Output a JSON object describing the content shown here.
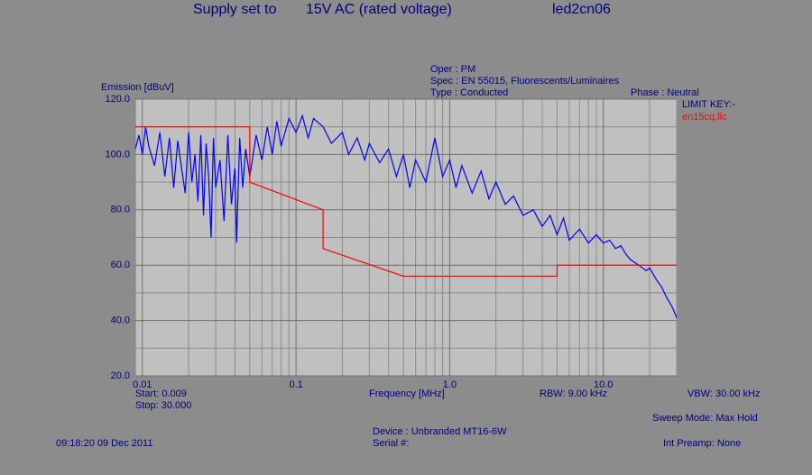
{
  "chart_data": {
    "type": "line",
    "title": "Supply set to",
    "title_supply": "15V AC  (rated voltage)",
    "title_id": "led2cn06",
    "ylabel": "Emission [dBuV]",
    "xlabel": "Frequency [MHz]",
    "oper": "Oper : PM",
    "spec": "Spec : EN 55015, Fluorescents/Luminaires",
    "test_type": "Type : Conducted",
    "phase": "Phase : Neutral",
    "legend_title": "LIMIT KEY:-",
    "start": "Start: 0.009",
    "stop": "Stop: 30.000",
    "rbw": "RBW: 9.00 kHz",
    "vbw": "VBW: 30.00 kHz",
    "sweep": "Sweep Mode: Max Hold",
    "device": "Device : Unbranded MT16-6W",
    "serial": "Serial #:",
    "timestamp": "09:18:20 09 Dec 2011",
    "preamp": "Int Preamp: None",
    "xscale": "log",
    "grid": true,
    "xlim": [
      0.009,
      30
    ],
    "ylim": [
      20,
      120
    ],
    "yticks": [
      {
        "value": 20,
        "label": "20.0"
      },
      {
        "value": 40,
        "label": "40.0"
      },
      {
        "value": 60,
        "label": "60.0"
      },
      {
        "value": 80,
        "label": "80.0"
      },
      {
        "value": 100,
        "label": "100.0"
      },
      {
        "value": 120,
        "label": "120.0"
      }
    ],
    "yminor": [
      30,
      50,
      70,
      90,
      110
    ],
    "xticks": [
      0.01,
      0.1,
      {
        "value": 1,
        "label": "1.0"
      },
      {
        "value": 10,
        "label": "10.0"
      }
    ],
    "xminor": [
      0.02,
      0.03,
      0.04,
      0.05,
      0.06,
      0.07,
      0.08,
      0.09,
      0.2,
      0.3,
      0.4,
      0.5,
      0.6,
      0.7,
      0.8,
      0.9,
      2,
      3,
      4,
      5,
      6,
      7,
      8,
      9,
      20,
      30
    ],
    "series": [
      {
        "color": "#0000ff",
        "x": [
          0.009,
          0.0095,
          0.01,
          0.0105,
          0.011,
          0.012,
          0.013,
          0.014,
          0.015,
          0.016,
          0.017,
          0.018,
          0.019,
          0.02,
          0.021,
          0.022,
          0.023,
          0.024,
          0.025,
          0.026,
          0.027,
          0.028,
          0.029,
          0.03,
          0.032,
          0.034,
          0.036,
          0.038,
          0.04,
          0.041,
          0.043,
          0.045,
          0.047,
          0.05,
          0.055,
          0.06,
          0.065,
          0.07,
          0.075,
          0.08,
          0.09,
          0.1,
          0.11,
          0.12,
          0.13,
          0.15,
          0.17,
          0.2,
          0.22,
          0.25,
          0.28,
          0.3,
          0.35,
          0.4,
          0.45,
          0.5,
          0.55,
          0.6,
          0.7,
          0.8,
          0.9,
          1.0,
          1.1,
          1.2,
          1.4,
          1.6,
          1.8,
          2.0,
          2.3,
          2.6,
          3.0,
          3.5,
          4.0,
          4.5,
          5.0,
          5.5,
          6.0,
          7.0,
          8.0,
          9.0,
          10,
          11,
          12,
          13,
          14,
          15,
          17,
          19,
          20,
          22,
          24,
          26,
          28,
          30
        ],
        "values": [
          102,
          107,
          100,
          110,
          103,
          96,
          108,
          92,
          106,
          88,
          105,
          95,
          86,
          108,
          90,
          100,
          83,
          107,
          78,
          104,
          92,
          70,
          106,
          88,
          98,
          76,
          107,
          82,
          95,
          68,
          106,
          88,
          102,
          92,
          107,
          98,
          110,
          100,
          112,
          103,
          113,
          108,
          114,
          106,
          113,
          110,
          104,
          108,
          100,
          106,
          98,
          104,
          97,
          102,
          92,
          100,
          88,
          98,
          90,
          106,
          92,
          98,
          88,
          96,
          86,
          94,
          84,
          90,
          82,
          85,
          78,
          80,
          74,
          78,
          71,
          77,
          69,
          73,
          68,
          71,
          68,
          69,
          66,
          67,
          64,
          62,
          60,
          58,
          59,
          55,
          52,
          48,
          45,
          41
        ]
      },
      {
        "name": "en15cq.llc",
        "color": "#ff0000",
        "x": [
          0.009,
          0.05,
          0.05,
          0.15,
          0.15,
          0.5,
          5,
          5,
          30
        ],
        "values": [
          110,
          110,
          90,
          80,
          66,
          56,
          56,
          60,
          60
        ]
      }
    ]
  }
}
